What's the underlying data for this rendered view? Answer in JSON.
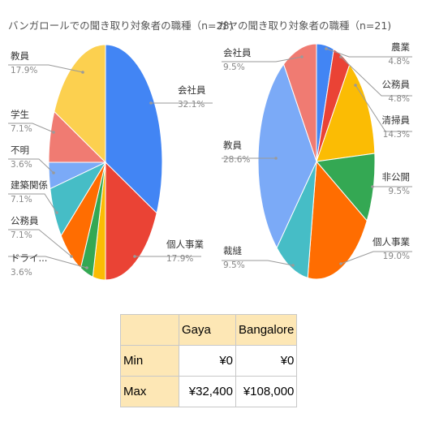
{
  "chart_data": [
    {
      "type": "pie",
      "title": "バンガロールでの聞き取り対象者の職種（n=28)",
      "slices": [
        {
          "label": "会社員",
          "value": 32.1,
          "display": "32.1%",
          "color": "#4285f4"
        },
        {
          "label": "個人事業",
          "value": 17.9,
          "display": "17.9%",
          "color": "#ea4335"
        },
        {
          "label": "",
          "value": 3.6,
          "display": "",
          "color": "#fbbc04"
        },
        {
          "label": "ドライ...",
          "value": 3.6,
          "display": "3.6%",
          "color": "#34a853"
        },
        {
          "label": "公務員",
          "value": 7.1,
          "display": "7.1%",
          "color": "#ff6d01"
        },
        {
          "label": "建築関係",
          "value": 7.1,
          "display": "7.1%",
          "color": "#46bdc6"
        },
        {
          "label": "不明",
          "value": 3.6,
          "display": "3.6%",
          "color": "#7baaf7"
        },
        {
          "label": "学生",
          "value": 7.1,
          "display": "7.1%",
          "color": "#f07b72"
        },
        {
          "label": "教員",
          "value": 17.9,
          "display": "17.9%",
          "color": "#fcd04f"
        }
      ]
    },
    {
      "type": "pie",
      "title": "ガヤの聞き取り対象者の職種（n=21)",
      "slices": [
        {
          "label": "農業",
          "value": 4.8,
          "display": "4.8%",
          "color": "#4285f4"
        },
        {
          "label": "公務員",
          "value": 4.8,
          "display": "4.8%",
          "color": "#ea4335"
        },
        {
          "label": "清掃員",
          "value": 14.3,
          "display": "14.3%",
          "color": "#fbbc04"
        },
        {
          "label": "非公開",
          "value": 9.5,
          "display": "9.5%",
          "color": "#34a853"
        },
        {
          "label": "個人事業",
          "value": 19.0,
          "display": "19.0%",
          "color": "#ff6d01"
        },
        {
          "label": "裁縫",
          "value": 9.5,
          "display": "9.5%",
          "color": "#46bdc6"
        },
        {
          "label": "教員",
          "value": 28.6,
          "display": "28.6%",
          "color": "#7baaf7"
        },
        {
          "label": "会社員",
          "value": 9.5,
          "display": "9.5%",
          "color": "#f07b72"
        }
      ]
    },
    {
      "type": "table",
      "columns": [
        "",
        "Gaya",
        "Bangalore"
      ],
      "rows": [
        {
          "label": "Min",
          "gaya": "¥0",
          "bangalore": "¥0"
        },
        {
          "label": "Max",
          "gaya": "¥32,400",
          "bangalore": "¥108,000"
        }
      ]
    }
  ]
}
